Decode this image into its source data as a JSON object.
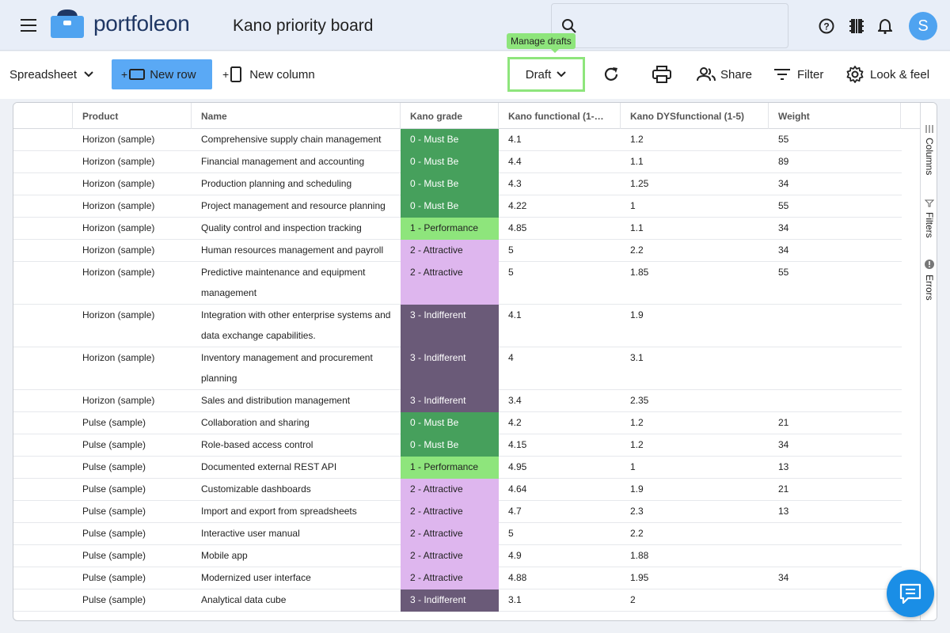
{
  "app": {
    "logo_text": "portfoleon",
    "board_title": "Kano priority board",
    "avatar_letter": "S"
  },
  "toolbar": {
    "view_label": "Spreadsheet",
    "new_row_label": "New row",
    "new_column_label": "New column",
    "draft_label": "Draft",
    "tooltip": "Manage drafts",
    "share_label": "Share",
    "filter_label": "Filter",
    "look_label": "Look & feel"
  },
  "grid": {
    "columns": [
      "Product",
      "Name",
      "Kano grade",
      "Kano functional (1-…",
      "Kano DYSfunctional (1-5)",
      "Weight"
    ],
    "rows": [
      {
        "product": "Horizon (sample)",
        "name": "Comprehensive supply chain management",
        "grade": "0 - Must Be",
        "func": "4.1",
        "dys": "1.2",
        "weight": "55"
      },
      {
        "product": "Horizon (sample)",
        "name": "Financial management and accounting",
        "grade": "0 - Must Be",
        "func": "4.4",
        "dys": "1.1",
        "weight": "89"
      },
      {
        "product": "Horizon (sample)",
        "name": "Production planning and scheduling",
        "grade": "0 - Must Be",
        "func": "4.3",
        "dys": "1.25",
        "weight": "34"
      },
      {
        "product": "Horizon (sample)",
        "name": "Project management and resource planning",
        "grade": "0 - Must Be",
        "func": "4.22",
        "dys": "1",
        "weight": "55"
      },
      {
        "product": "Horizon (sample)",
        "name": "Quality control and inspection tracking",
        "grade": "1 - Performance",
        "func": "4.85",
        "dys": "1.1",
        "weight": "34"
      },
      {
        "product": "Horizon (sample)",
        "name": "Human resources management and payroll",
        "grade": "2 - Attractive",
        "func": "5",
        "dys": "2.2",
        "weight": "34"
      },
      {
        "product": "Horizon (sample)",
        "name": "Predictive maintenance and equipment management",
        "grade": "2 - Attractive",
        "func": "5",
        "dys": "1.85",
        "weight": "55"
      },
      {
        "product": "Horizon (sample)",
        "name": "Integration with other enterprise systems and data exchange capabilities.",
        "grade": "3 - Indifferent",
        "func": "4.1",
        "dys": "1.9",
        "weight": ""
      },
      {
        "product": "Horizon (sample)",
        "name": "Inventory management and procurement planning",
        "grade": "3 - Indifferent",
        "func": "4",
        "dys": "3.1",
        "weight": ""
      },
      {
        "product": "Horizon (sample)",
        "name": "Sales and distribution management",
        "grade": "3 - Indifferent",
        "func": "3.4",
        "dys": "2.35",
        "weight": ""
      },
      {
        "product": "Pulse (sample)",
        "name": "Collaboration and sharing",
        "grade": "0 - Must Be",
        "func": "4.2",
        "dys": "1.2",
        "weight": "21"
      },
      {
        "product": "Pulse (sample)",
        "name": "Role-based access control",
        "grade": "0 - Must Be",
        "func": "4.15",
        "dys": "1.2",
        "weight": "34"
      },
      {
        "product": "Pulse (sample)",
        "name": "Documented external REST API",
        "grade": "1 - Performance",
        "func": "4.95",
        "dys": "1",
        "weight": "13"
      },
      {
        "product": "Pulse (sample)",
        "name": "Customizable dashboards",
        "grade": "2 - Attractive",
        "func": "4.64",
        "dys": "1.9",
        "weight": "21"
      },
      {
        "product": "Pulse (sample)",
        "name": "Import and export from spreadsheets",
        "grade": "2 - Attractive",
        "func": "4.7",
        "dys": "2.3",
        "weight": "13"
      },
      {
        "product": "Pulse (sample)",
        "name": "Interactive user manual",
        "grade": "2 - Attractive",
        "func": "5",
        "dys": "2.2",
        "weight": ""
      },
      {
        "product": "Pulse (sample)",
        "name": "Mobile app",
        "grade": "2 - Attractive",
        "func": "4.9",
        "dys": "1.88",
        "weight": ""
      },
      {
        "product": "Pulse (sample)",
        "name": "Modernized user interface",
        "grade": "2 - Attractive",
        "func": "4.88",
        "dys": "1.95",
        "weight": "34"
      },
      {
        "product": "Pulse (sample)",
        "name": "Analytical data cube",
        "grade": "3 - Indifferent",
        "func": "3.1",
        "dys": "2",
        "weight": ""
      }
    ]
  },
  "side_tabs": [
    "Columns",
    "Filters",
    "Errors"
  ],
  "colors": {
    "must_be": "#46a05c",
    "performance": "#8ee57c",
    "attractive": "#deb6ee",
    "indifferent": "#6a5a78",
    "accent": "#5aa9f5"
  }
}
